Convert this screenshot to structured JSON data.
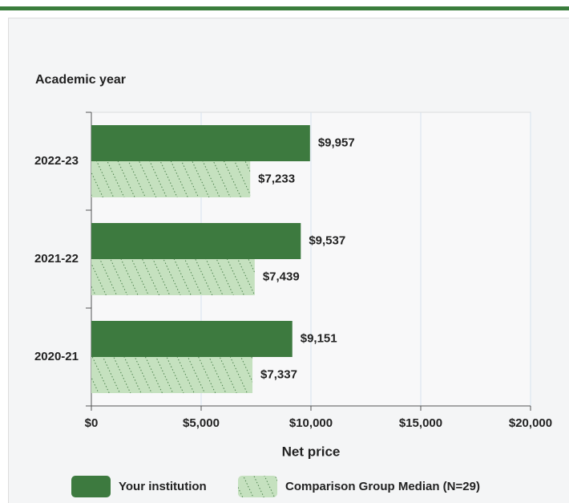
{
  "chart_data": {
    "type": "bar",
    "orientation": "horizontal",
    "y_axis_title": "Academic year",
    "x_axis_title": "Net price",
    "categories": [
      "2022-23",
      "2021-22",
      "2020-21"
    ],
    "series": [
      {
        "name": "Your institution",
        "color": "#3d7a3f",
        "values": [
          9957,
          9537,
          9151
        ],
        "value_labels": [
          "$9,957",
          "$9,537",
          "$9,151"
        ]
      },
      {
        "name": "Comparison Group Median (N=29)",
        "color": "#c5e1bf",
        "pattern": "hatch",
        "values": [
          7233,
          7439,
          7337
        ],
        "value_labels": [
          "$7,233",
          "$7,439",
          "$7,337"
        ]
      }
    ],
    "xlim": [
      0,
      20000
    ],
    "xticks": [
      {
        "value": 0,
        "label": "$0"
      },
      {
        "value": 5000,
        "label": "$5,000"
      },
      {
        "value": 10000,
        "label": "$10,000"
      },
      {
        "value": 15000,
        "label": "$15,000"
      },
      {
        "value": 20000,
        "label": "$20,000"
      }
    ],
    "grid": true,
    "legend": "bottom"
  }
}
